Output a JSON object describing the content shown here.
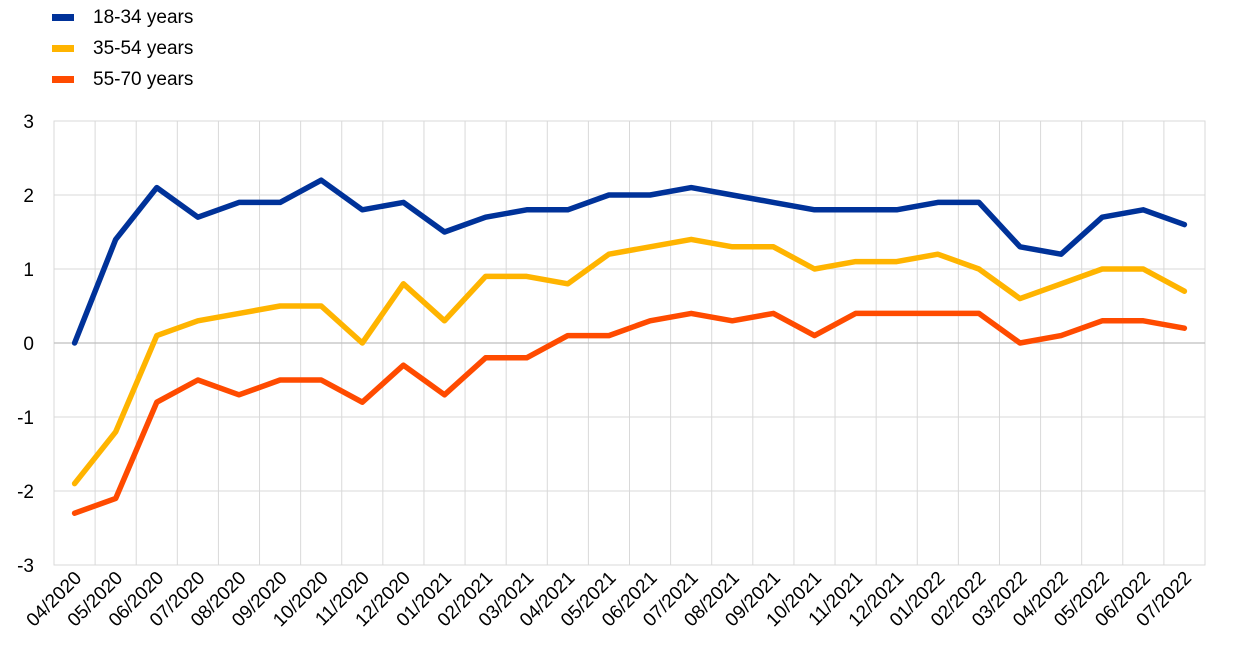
{
  "chart_data": {
    "type": "line",
    "title": "",
    "xlabel": "",
    "ylabel": "",
    "ylim": [
      -3,
      3
    ],
    "yticks": [
      "3",
      "2",
      "1",
      "0",
      "-1",
      "-2",
      "-3"
    ],
    "grid": true,
    "legend_position": "top-left",
    "categories": [
      "04/2020",
      "05/2020",
      "06/2020",
      "07/2020",
      "08/2020",
      "09/2020",
      "10/2020",
      "11/2020",
      "12/2020",
      "01/2021",
      "02/2021",
      "03/2021",
      "04/2021",
      "05/2021",
      "06/2021",
      "07/2021",
      "08/2021",
      "09/2021",
      "10/2021",
      "11/2021",
      "12/2021",
      "01/2022",
      "02/2022",
      "03/2022",
      "04/2022",
      "05/2022",
      "06/2022",
      "07/2022"
    ],
    "series": [
      {
        "name": "18-34 years",
        "color": "#003299",
        "values": [
          0,
          1.4,
          2.1,
          1.7,
          1.9,
          1.9,
          2.2,
          1.8,
          1.9,
          1.5,
          1.7,
          1.8,
          1.8,
          2.0,
          2.0,
          2.1,
          2.0,
          1.9,
          1.8,
          1.8,
          1.8,
          1.9,
          1.9,
          1.3,
          1.2,
          1.7,
          1.8,
          1.6
        ]
      },
      {
        "name": "35-54 years",
        "color": "#FFB400",
        "values": [
          -1.9,
          -1.2,
          0.1,
          0.3,
          0.4,
          0.5,
          0.5,
          0.0,
          0.8,
          0.3,
          0.9,
          0.9,
          0.8,
          1.2,
          1.3,
          1.4,
          1.3,
          1.3,
          1.0,
          1.1,
          1.1,
          1.2,
          1.0,
          0.6,
          0.8,
          1.0,
          1.0,
          0.7
        ]
      },
      {
        "name": "55-70 years",
        "color": "#FF4B00",
        "values": [
          -2.3,
          -2.1,
          -0.8,
          -0.5,
          -0.7,
          -0.5,
          -0.5,
          -0.8,
          -0.3,
          -0.7,
          -0.2,
          -0.2,
          0.1,
          0.1,
          0.3,
          0.4,
          0.3,
          0.4,
          0.1,
          0.4,
          0.4,
          0.4,
          0.4,
          0.0,
          0.1,
          0.3,
          0.3,
          0.2
        ]
      }
    ]
  }
}
